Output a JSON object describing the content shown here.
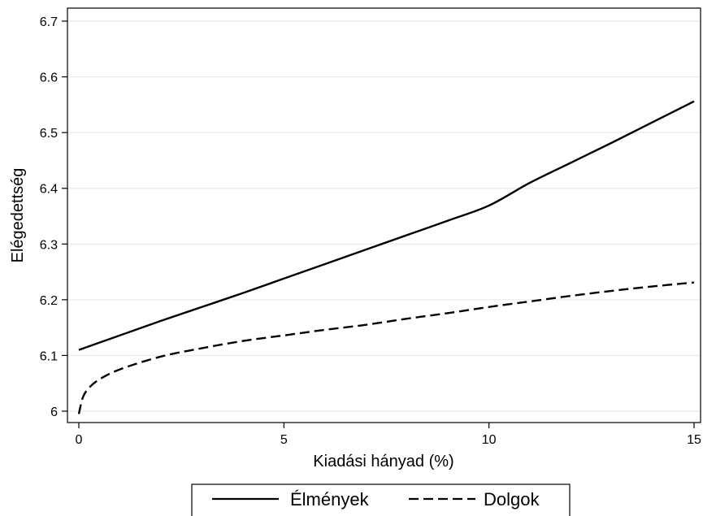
{
  "chart_data": {
    "type": "line",
    "title": "",
    "xlabel": "Kiadási hányad (%)",
    "ylabel": "Elégedettség",
    "xlim": [
      0,
      15
    ],
    "ylim": [
      6.0,
      6.7
    ],
    "x_ticks": [
      0,
      5,
      10,
      15
    ],
    "x_tick_labels": [
      "0",
      "5",
      "10",
      "15"
    ],
    "y_ticks": [
      6.0,
      6.1,
      6.2,
      6.3,
      6.4,
      6.5,
      6.6,
      6.7
    ],
    "y_tick_labels": [
      "6",
      "6.1",
      "6.2",
      "6.3",
      "6.4",
      "6.5",
      "6.6",
      "6.7"
    ],
    "grid": "horizontal",
    "legend_position": "bottom",
    "series": [
      {
        "name": "Élmények",
        "line_style": "solid",
        "color": "#000000",
        "x": [
          0,
          1,
          2,
          3,
          4,
          5,
          6,
          7,
          8,
          9,
          10,
          11,
          12,
          13,
          14,
          15
        ],
        "y": [
          6.11,
          6.136,
          6.162,
          6.187,
          6.212,
          6.238,
          6.264,
          6.29,
          6.316,
          6.342,
          6.369,
          6.41,
          6.446,
          6.482,
          6.519,
          6.556
        ]
      },
      {
        "name": "Dolgok",
        "line_style": "dashed",
        "color": "#000000",
        "x": [
          0,
          0.1,
          0.25,
          0.5,
          1,
          2,
          3,
          4,
          5,
          6,
          7,
          8,
          9,
          10,
          11,
          12,
          13,
          14,
          15
        ],
        "y": [
          5.995,
          6.025,
          6.042,
          6.057,
          6.075,
          6.098,
          6.113,
          6.126,
          6.136,
          6.146,
          6.155,
          6.166,
          6.176,
          6.187,
          6.197,
          6.207,
          6.216,
          6.224,
          6.231
        ]
      }
    ]
  },
  "colors": {
    "plot_border": "#000000",
    "grid": "#e6e6e6",
    "line": "#000000",
    "background": "#ffffff"
  }
}
